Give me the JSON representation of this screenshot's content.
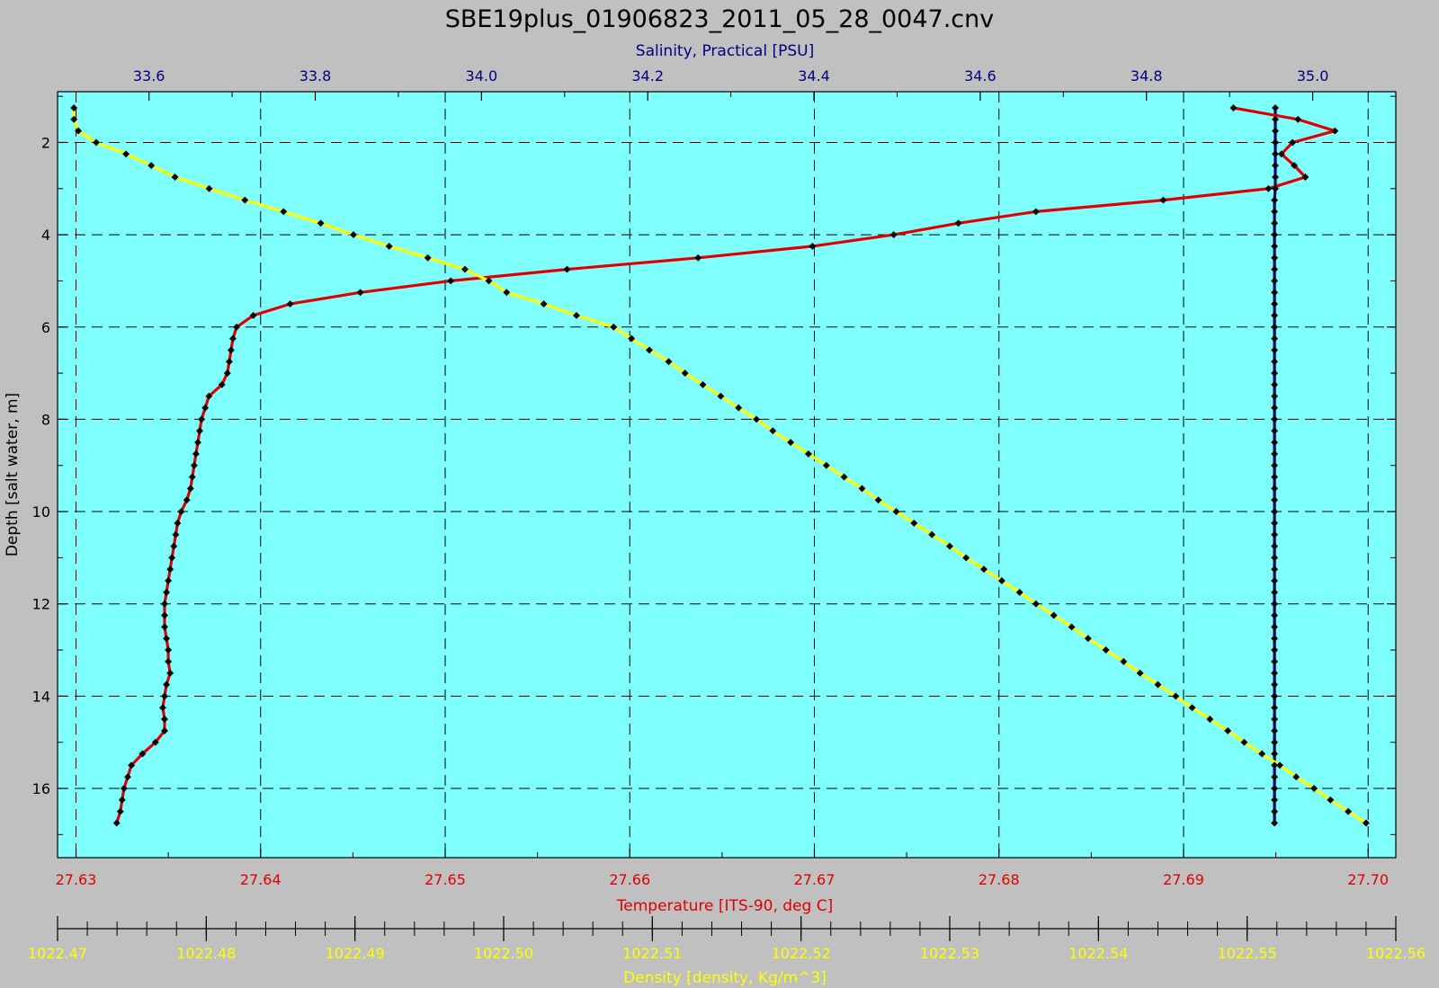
{
  "page": {
    "background": "#c0c0c0",
    "plot_background": "#80ffff"
  },
  "chart_data": {
    "type": "line",
    "title": "SBE19plus_01906823_2011_05_28_0047.cnv",
    "y_axis": {
      "label": "Depth [salt water, m]",
      "range": [
        0.9,
        17.5
      ],
      "inverted": true,
      "ticks": [
        2,
        4,
        6,
        8,
        10,
        12,
        14,
        16
      ]
    },
    "axes": {
      "salinity": {
        "label": "Salinity, Practical [PSU]",
        "position": "top",
        "color": "#000080",
        "range": [
          33.49,
          35.1
        ],
        "ticks": [
          33.6,
          33.8,
          34.0,
          34.2,
          34.4,
          34.6,
          34.8,
          35.0
        ],
        "tick_labels": [
          "33.6",
          "33.8",
          "34.0",
          "34.2",
          "34.4",
          "34.6",
          "34.8",
          "35.0"
        ]
      },
      "temperature": {
        "label": "Temperature [ITS-90, deg C]",
        "position": "bottom",
        "color": "#e00000",
        "range": [
          27.629,
          27.7015
        ],
        "ticks": [
          27.63,
          27.64,
          27.65,
          27.66,
          27.67,
          27.68,
          27.69,
          27.7
        ],
        "tick_labels": [
          "27.63",
          "27.64",
          "27.65",
          "27.66",
          "27.67",
          "27.68",
          "27.69",
          "27.70"
        ]
      },
      "density": {
        "label": "Density [density, Kg/m^3]",
        "position": "bottom-secondary",
        "color": "#ffff00",
        "range": [
          1022.47,
          1022.56
        ],
        "ticks": [
          1022.47,
          1022.48,
          1022.49,
          1022.5,
          1022.51,
          1022.52,
          1022.53,
          1022.54,
          1022.55,
          1022.56
        ],
        "tick_labels": [
          "1022.47",
          "1022.48",
          "1022.49",
          "1022.50",
          "1022.51",
          "1022.52",
          "1022.53",
          "1022.54",
          "1022.55",
          "1022.56"
        ]
      }
    },
    "grid": true,
    "series": [
      {
        "axis": "salinity",
        "color": "#000080",
        "points": [
          [
            34.955,
            1.25
          ],
          [
            34.955,
            1.5
          ],
          [
            34.955,
            1.75
          ],
          [
            34.955,
            2.0
          ],
          [
            34.955,
            2.25
          ],
          [
            34.955,
            2.5
          ],
          [
            34.955,
            2.75
          ],
          [
            34.955,
            3.0
          ],
          [
            34.954,
            3.25
          ],
          [
            34.954,
            3.5
          ],
          [
            34.954,
            3.75
          ],
          [
            34.954,
            4.0
          ],
          [
            34.954,
            4.25
          ],
          [
            34.954,
            4.5
          ],
          [
            34.954,
            4.75
          ],
          [
            34.954,
            5.0
          ],
          [
            34.954,
            5.25
          ],
          [
            34.954,
            5.5
          ],
          [
            34.954,
            5.75
          ],
          [
            34.954,
            6.0
          ],
          [
            34.954,
            6.25
          ],
          [
            34.954,
            6.5
          ],
          [
            34.954,
            6.75
          ],
          [
            34.954,
            7.0
          ],
          [
            34.954,
            7.25
          ],
          [
            34.954,
            7.5
          ],
          [
            34.954,
            7.75
          ],
          [
            34.954,
            8.0
          ],
          [
            34.954,
            8.25
          ],
          [
            34.954,
            8.5
          ],
          [
            34.954,
            8.75
          ],
          [
            34.954,
            9.0
          ],
          [
            34.954,
            9.25
          ],
          [
            34.954,
            9.5
          ],
          [
            34.954,
            9.75
          ],
          [
            34.954,
            10.0
          ],
          [
            34.954,
            10.25
          ],
          [
            34.954,
            10.5
          ],
          [
            34.954,
            10.75
          ],
          [
            34.954,
            11.0
          ],
          [
            34.954,
            11.25
          ],
          [
            34.954,
            11.5
          ],
          [
            34.954,
            11.75
          ],
          [
            34.954,
            12.0
          ],
          [
            34.954,
            12.25
          ],
          [
            34.954,
            12.5
          ],
          [
            34.954,
            12.75
          ],
          [
            34.954,
            13.0
          ],
          [
            34.954,
            13.25
          ],
          [
            34.954,
            13.5
          ],
          [
            34.954,
            13.75
          ],
          [
            34.954,
            14.0
          ],
          [
            34.954,
            14.25
          ],
          [
            34.954,
            14.5
          ],
          [
            34.954,
            14.75
          ],
          [
            34.954,
            15.0
          ],
          [
            34.954,
            15.25
          ],
          [
            34.954,
            15.5
          ],
          [
            34.954,
            15.75
          ],
          [
            34.954,
            16.0
          ],
          [
            34.954,
            16.25
          ],
          [
            34.954,
            16.5
          ],
          [
            34.954,
            16.75
          ]
        ]
      },
      {
        "axis": "temperature",
        "color": "#e00000",
        "points": [
          [
            27.6927,
            1.25
          ],
          [
            27.6962,
            1.5
          ],
          [
            27.6982,
            1.75
          ],
          [
            27.6959,
            2.0
          ],
          [
            27.6953,
            2.25
          ],
          [
            27.696,
            2.5
          ],
          [
            27.6966,
            2.75
          ],
          [
            27.6946,
            3.0
          ],
          [
            27.6889,
            3.25
          ],
          [
            27.682,
            3.5
          ],
          [
            27.6778,
            3.75
          ],
          [
            27.6743,
            4.0
          ],
          [
            27.6699,
            4.25
          ],
          [
            27.6637,
            4.5
          ],
          [
            27.6566,
            4.75
          ],
          [
            27.6503,
            5.0
          ],
          [
            27.6454,
            5.25
          ],
          [
            27.6416,
            5.5
          ],
          [
            27.6396,
            5.75
          ],
          [
            27.6387,
            6.0
          ],
          [
            27.6385,
            6.25
          ],
          [
            27.6384,
            6.5
          ],
          [
            27.6383,
            6.75
          ],
          [
            27.6382,
            7.0
          ],
          [
            27.6379,
            7.25
          ],
          [
            27.6372,
            7.5
          ],
          [
            27.637,
            7.75
          ],
          [
            27.6368,
            8.0
          ],
          [
            27.6367,
            8.25
          ],
          [
            27.6366,
            8.5
          ],
          [
            27.6365,
            8.75
          ],
          [
            27.6364,
            9.0
          ],
          [
            27.6363,
            9.25
          ],
          [
            27.6362,
            9.5
          ],
          [
            27.636,
            9.75
          ],
          [
            27.6357,
            10.0
          ],
          [
            27.6355,
            10.25
          ],
          [
            27.6354,
            10.5
          ],
          [
            27.6353,
            10.75
          ],
          [
            27.6352,
            11.0
          ],
          [
            27.6351,
            11.25
          ],
          [
            27.635,
            11.5
          ],
          [
            27.6349,
            11.75
          ],
          [
            27.6348,
            12.0
          ],
          [
            27.6348,
            12.25
          ],
          [
            27.6348,
            12.5
          ],
          [
            27.6349,
            12.75
          ],
          [
            27.635,
            13.0
          ],
          [
            27.635,
            13.25
          ],
          [
            27.6351,
            13.5
          ],
          [
            27.6349,
            13.75
          ],
          [
            27.6348,
            14.0
          ],
          [
            27.6347,
            14.25
          ],
          [
            27.6348,
            14.5
          ],
          [
            27.6348,
            14.75
          ],
          [
            27.6343,
            15.0
          ],
          [
            27.6336,
            15.25
          ],
          [
            27.633,
            15.5
          ],
          [
            27.6328,
            15.75
          ],
          [
            27.6326,
            16.0
          ],
          [
            27.6325,
            16.25
          ],
          [
            27.6324,
            16.5
          ],
          [
            27.6322,
            16.75
          ]
        ]
      },
      {
        "axis": "density",
        "color": "#ffff00",
        "points": [
          [
            1022.4711,
            1.25
          ],
          [
            1022.4711,
            1.5
          ],
          [
            1022.4714,
            1.75
          ],
          [
            1022.4726,
            2.0
          ],
          [
            1022.4746,
            2.25
          ],
          [
            1022.4763,
            2.5
          ],
          [
            1022.4779,
            2.75
          ],
          [
            1022.4802,
            3.0
          ],
          [
            1022.4826,
            3.25
          ],
          [
            1022.4852,
            3.5
          ],
          [
            1022.4877,
            3.75
          ],
          [
            1022.4899,
            4.0
          ],
          [
            1022.4923,
            4.25
          ],
          [
            1022.4949,
            4.5
          ],
          [
            1022.4974,
            4.75
          ],
          [
            1022.499,
            5.0
          ],
          [
            1022.5002,
            5.25
          ],
          [
            1022.5027,
            5.5
          ],
          [
            1022.5049,
            5.75
          ],
          [
            1022.5074,
            6.0
          ],
          [
            1022.5086,
            6.25
          ],
          [
            1022.5098,
            6.5
          ],
          [
            1022.5111,
            6.75
          ],
          [
            1022.5122,
            7.0
          ],
          [
            1022.5134,
            7.25
          ],
          [
            1022.5146,
            7.5
          ],
          [
            1022.5158,
            7.75
          ],
          [
            1022.517,
            8.0
          ],
          [
            1022.5181,
            8.25
          ],
          [
            1022.5193,
            8.5
          ],
          [
            1022.5205,
            8.75
          ],
          [
            1022.5217,
            9.0
          ],
          [
            1022.5229,
            9.25
          ],
          [
            1022.5241,
            9.5
          ],
          [
            1022.5252,
            9.75
          ],
          [
            1022.5264,
            10.0
          ],
          [
            1022.5276,
            10.25
          ],
          [
            1022.5288,
            10.5
          ],
          [
            1022.53,
            10.75
          ],
          [
            1022.5311,
            11.0
          ],
          [
            1022.5323,
            11.25
          ],
          [
            1022.5335,
            11.5
          ],
          [
            1022.5347,
            11.75
          ],
          [
            1022.5358,
            12.0
          ],
          [
            1022.537,
            12.25
          ],
          [
            1022.5382,
            12.5
          ],
          [
            1022.5393,
            12.75
          ],
          [
            1022.5405,
            13.0
          ],
          [
            1022.5417,
            13.25
          ],
          [
            1022.5428,
            13.5
          ],
          [
            1022.544,
            13.75
          ],
          [
            1022.5452,
            14.0
          ],
          [
            1022.5463,
            14.25
          ],
          [
            1022.5475,
            14.5
          ],
          [
            1022.5487,
            14.75
          ],
          [
            1022.5498,
            15.0
          ],
          [
            1022.551,
            15.25
          ],
          [
            1022.5522,
            15.5
          ],
          [
            1022.5533,
            15.75
          ],
          [
            1022.5545,
            16.0
          ],
          [
            1022.5556,
            16.25
          ],
          [
            1022.5568,
            16.5
          ],
          [
            1022.558,
            16.75
          ]
        ]
      }
    ]
  }
}
